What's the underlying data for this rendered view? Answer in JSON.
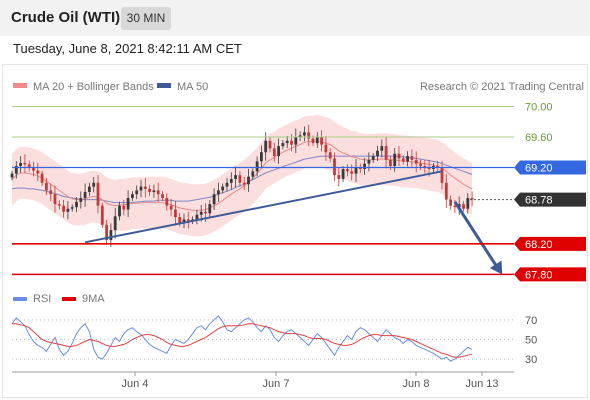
{
  "header": {
    "title": "Crude Oil (WTI)",
    "timeframe": "30 MIN",
    "datetime": "Tuesday, June 8, 2021 8:42:11 AM CET"
  },
  "legend": {
    "bollinger": "MA 20 + Bollinger Bands",
    "ma50": "MA 50",
    "copyright": "Research © 2021 Trading Central"
  },
  "rsi_legend": {
    "rsi": "RSI",
    "ma": "9MA"
  },
  "colors": {
    "price_up": "#3a3a3a",
    "price_down": "#c23a3a",
    "bollinger_fill": "#fbdede",
    "ma20": "#e88a8a",
    "ma50": "#7d85c8",
    "trendline": "#3d5a99",
    "resistance": "#a8cf8a",
    "pivot": "#3468e0",
    "support": "#e00000",
    "current": "#333333",
    "rsi": "#6a8fe0",
    "rsi_ma": "#e04040"
  },
  "chart_data": {
    "type": "candlestick",
    "price_axis": {
      "ylim": [
        67.7,
        70.15
      ]
    },
    "x_ticks": [
      "Jun 4",
      "Jun 7",
      "Jun 8",
      "Jun 13"
    ],
    "levels": [
      {
        "name": "resistance-2",
        "value": 70.0,
        "label": "70.00",
        "kind": "resistance"
      },
      {
        "name": "resistance-1",
        "value": 69.6,
        "label": "69.60",
        "kind": "resistance"
      },
      {
        "name": "pivot",
        "value": 69.2,
        "label": "69.20",
        "kind": "pivot"
      },
      {
        "name": "current",
        "value": 68.78,
        "label": "68.78",
        "kind": "current"
      },
      {
        "name": "support-1",
        "value": 68.2,
        "label": "68.20",
        "kind": "support"
      },
      {
        "name": "support-2",
        "value": 67.8,
        "label": "67.80",
        "kind": "support"
      }
    ],
    "closes": [
      69.12,
      69.22,
      69.26,
      69.24,
      69.2,
      69.16,
      69.12,
      69.0,
      68.9,
      68.85,
      68.72,
      68.7,
      68.62,
      68.66,
      68.68,
      68.75,
      68.8,
      68.88,
      68.95,
      69.0,
      68.7,
      68.45,
      68.25,
      68.38,
      68.56,
      68.7,
      68.65,
      68.8,
      68.85,
      68.9,
      68.95,
      68.92,
      68.88,
      68.9,
      68.85,
      68.8,
      68.7,
      68.65,
      68.55,
      68.48,
      68.52,
      68.5,
      68.52,
      68.58,
      68.62,
      68.6,
      68.72,
      68.85,
      68.9,
      68.95,
      69.0,
      69.05,
      69.1,
      69.0,
      68.98,
      69.08,
      69.15,
      69.28,
      69.4,
      69.55,
      69.45,
      69.35,
      69.48,
      69.52,
      69.55,
      69.5,
      69.6,
      69.62,
      69.66,
      69.58,
      69.52,
      69.6,
      69.5,
      69.4,
      69.32,
      69.1,
      69.05,
      69.18,
      69.15,
      69.12,
      69.2,
      69.18,
      69.25,
      69.3,
      69.35,
      69.42,
      69.48,
      69.3,
      69.22,
      69.38,
      69.32,
      69.28,
      69.35,
      69.3,
      69.25,
      69.22,
      69.2,
      69.18,
      69.22,
      69.2,
      69.0,
      68.78,
      68.7,
      68.68,
      68.72,
      68.66,
      68.8,
      68.78
    ],
    "ma20": [
      69.04,
      69.1,
      69.13,
      69.13,
      69.12,
      69.11,
      69.09,
      69.06,
      69.02,
      68.98,
      68.94,
      68.9,
      68.86,
      68.82,
      68.79,
      68.78,
      68.78,
      68.79,
      68.81,
      68.82,
      68.81,
      68.78,
      68.73,
      68.71,
      68.7,
      68.71,
      68.71,
      68.72,
      68.73,
      68.73,
      68.74,
      68.74,
      68.74,
      68.74,
      68.74,
      68.74,
      68.73,
      68.71,
      68.69,
      68.67,
      68.66,
      68.65,
      68.64,
      68.64,
      68.64,
      68.65,
      68.67,
      68.7,
      68.73,
      68.77,
      68.81,
      68.85,
      68.89,
      68.92,
      68.96,
      69.01,
      69.06,
      69.12,
      69.19,
      69.26,
      69.3,
      69.33,
      69.37,
      69.4,
      69.43,
      69.45,
      69.48,
      69.5,
      69.53,
      69.54,
      69.54,
      69.55,
      69.54,
      69.52,
      69.5,
      69.46,
      69.42,
      69.39,
      69.37,
      69.34,
      69.33,
      69.31,
      69.3,
      69.3,
      69.3,
      69.31,
      69.31,
      69.31,
      69.3,
      69.3,
      69.29,
      69.28,
      69.28,
      69.27,
      69.27,
      69.26,
      69.25,
      69.24,
      69.23,
      69.22,
      69.19,
      69.15,
      69.1,
      69.06,
      69.02,
      68.98,
      68.95,
      68.92
    ],
    "ma50": [
      68.92,
      68.93,
      68.93,
      68.93,
      68.92,
      68.92,
      68.91,
      68.9,
      68.89,
      68.87,
      68.86,
      68.84,
      68.82,
      68.81,
      68.8,
      68.79,
      68.78,
      68.78,
      68.78,
      68.78,
      68.78,
      68.77,
      68.76,
      68.75,
      68.74,
      68.74,
      68.74,
      68.74,
      68.74,
      68.75,
      68.75,
      68.76,
      68.76,
      68.76,
      68.77,
      68.77,
      68.77,
      68.77,
      68.76,
      68.76,
      68.76,
      68.76,
      68.77,
      68.78,
      68.79,
      68.8,
      68.81,
      68.83,
      68.85,
      68.87,
      68.89,
      68.91,
      68.94,
      68.96,
      68.98,
      69.01,
      69.04,
      69.07,
      69.1,
      69.13,
      69.15,
      69.17,
      69.19,
      69.21,
      69.23,
      69.25,
      69.27,
      69.29,
      69.31,
      69.32,
      69.33,
      69.34,
      69.35,
      69.35,
      69.35,
      69.35,
      69.35,
      69.35,
      69.35,
      69.35,
      69.35,
      69.35,
      69.35,
      69.35,
      69.35,
      69.35,
      69.35,
      69.35,
      69.35,
      69.35,
      69.34,
      69.34,
      69.33,
      69.33,
      69.32,
      69.31,
      69.3,
      69.29,
      69.28,
      69.27,
      69.25,
      69.23,
      69.21,
      69.19,
      69.17,
      69.15,
      69.13,
      69.11
    ],
    "bb_width": 0.34,
    "trendlines": [
      {
        "name": "rising-trendline",
        "from": {
          "bar": 17,
          "value": 68.22
        },
        "to": {
          "bar": 100,
          "value": 69.15
        }
      },
      {
        "name": "forecast-arrow",
        "from": {
          "bar": 103,
          "value": 68.75
        },
        "to": {
          "bar": 114,
          "value": 67.8
        }
      }
    ],
    "rsi": {
      "ylim": [
        22,
        78
      ],
      "levels": [
        70,
        50,
        30
      ],
      "values": [
        66,
        72,
        68,
        64,
        55,
        48,
        44,
        42,
        38,
        45,
        52,
        40,
        34,
        38,
        46,
        56,
        62,
        66,
        58,
        40,
        32,
        30,
        36,
        44,
        52,
        48,
        56,
        60,
        62,
        58,
        55,
        50,
        45,
        42,
        40,
        38,
        36,
        44,
        50,
        48,
        46,
        50,
        56,
        62,
        64,
        60,
        66,
        70,
        74,
        68,
        60,
        58,
        62,
        66,
        70,
        72,
        68,
        62,
        58,
        64,
        60,
        52,
        48,
        54,
        58,
        60,
        56,
        52,
        48,
        44,
        50,
        56,
        52,
        46,
        40,
        34,
        42,
        48,
        54,
        50,
        58,
        62,
        60,
        56,
        52,
        48,
        54,
        60,
        56,
        52,
        50,
        46,
        50,
        48,
        44,
        42,
        40,
        38,
        36,
        33,
        30,
        32,
        28,
        30,
        34,
        38,
        42,
        40
      ],
      "ma": [
        66,
        66,
        65,
        64,
        62,
        58,
        54,
        50,
        48,
        47,
        46,
        45,
        44,
        43,
        43,
        44,
        46,
        48,
        50,
        49,
        48,
        46,
        44,
        43,
        43,
        44,
        45,
        47,
        50,
        52,
        54,
        55,
        55,
        54,
        52,
        50,
        47,
        45,
        44,
        43,
        43,
        44,
        46,
        48,
        50,
        52,
        55,
        58,
        61,
        63,
        64,
        64,
        64,
        64,
        65,
        66,
        66,
        65,
        64,
        63,
        62,
        60,
        58,
        57,
        56,
        56,
        56,
        55,
        54,
        52,
        51,
        51,
        51,
        50,
        48,
        46,
        45,
        44,
        44,
        45,
        47,
        50,
        52,
        54,
        55,
        55,
        54,
        54,
        54,
        54,
        53,
        52,
        51,
        50,
        48,
        46,
        44,
        42,
        40,
        38,
        36,
        35,
        33,
        32,
        32,
        33,
        34,
        35
      ]
    },
    "rsi_tick_labels": [
      "70",
      "50",
      "30"
    ]
  }
}
